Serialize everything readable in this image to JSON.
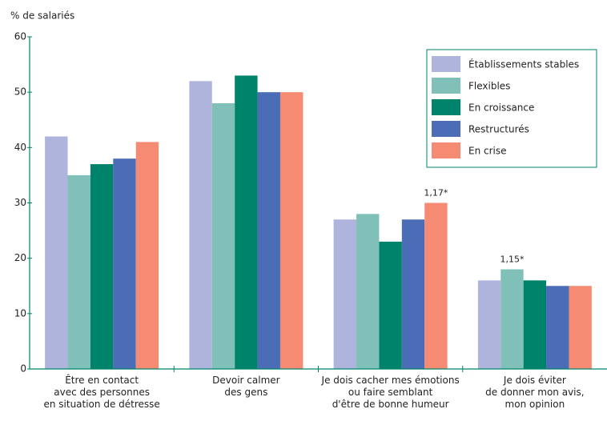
{
  "chart_data": {
    "type": "bar",
    "y_axis_label": "% de salariés",
    "categories": [
      "Être en contact\navec des personnes\nen situation de détresse",
      "Devoir calmer\ndes gens",
      "Je dois cacher mes émotions\nou faire semblant\nd'être de bonne humeur",
      "Je dois éviter\nde donner mon avis,\nmon opinion"
    ],
    "series": [
      {
        "name": "Établissements stables",
        "color": "#aeb4dc",
        "values": [
          42,
          52,
          27,
          16
        ]
      },
      {
        "name": "Flexibles",
        "color": "#80c0b8",
        "values": [
          35,
          48,
          28,
          18
        ]
      },
      {
        "name": "En croissance",
        "color": "#00836b",
        "values": [
          37,
          53,
          23,
          16
        ]
      },
      {
        "name": "Restructurés",
        "color": "#4a6db5",
        "values": [
          38,
          50,
          27,
          15
        ]
      },
      {
        "name": "En crise",
        "color": "#f48b72",
        "values": [
          41,
          50,
          30,
          15
        ]
      }
    ],
    "annotations": [
      {
        "text": "1,17*",
        "category": "Je dois cacher mes émotions\nou faire semblant\nd'être de bonne humeur",
        "series": "En crise"
      },
      {
        "text": "1,15*",
        "category": "Je dois éviter\nde donner mon avis,\nmon opinion",
        "series": "Flexibles"
      }
    ],
    "ylim": [
      0,
      60
    ],
    "yticks": [
      0,
      10,
      20,
      30,
      40,
      50,
      60
    ],
    "grid": false,
    "legend": "top-right"
  }
}
